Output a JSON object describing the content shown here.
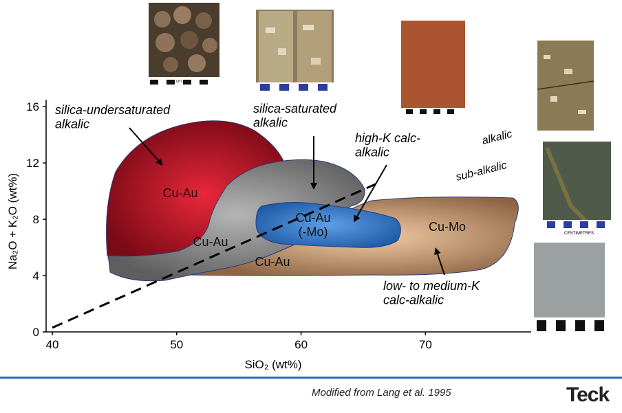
{
  "chart_data": {
    "type": "scatter",
    "xlabel": "SiO₂ (wt%)",
    "ylabel": "Na₂O + K₂O (wt%)",
    "x_ticks": [
      40,
      50,
      60,
      70
    ],
    "y_ticks": [
      0,
      4,
      8,
      12,
      16
    ],
    "xlim": [
      39.5,
      78.5
    ],
    "ylim": [
      0,
      16.5
    ],
    "divider": {
      "points": [
        [
          40,
          0.3
        ],
        [
          66,
          10.5
        ]
      ],
      "label_above": "alkalic",
      "label_below": "sub-alkalic"
    },
    "fields": [
      {
        "name": "silica-undersaturated alkalic",
        "deposit": "Cu-Au",
        "color": "#9c1020"
      },
      {
        "name": "silica-saturated alkalic",
        "deposit": "Cu-Au",
        "color": "#808080"
      },
      {
        "name": "high-K calc-alkalic",
        "deposit": "Cu-Au\n(-Mo)",
        "color": "#3b78c2"
      },
      {
        "name": "low- to medium-K calc-alkalic",
        "deposit": "Cu-Mo",
        "color": "#c89a72"
      }
    ],
    "extra_labels": [
      "Cu-Au",
      "Cu-Au"
    ],
    "annotations": [
      "silica-undersaturated\nalkalic",
      "silica-saturated\nalkalic",
      "high-K calc-\nalkalic",
      "low- to medium-K\ncalc-alkalic"
    ]
  },
  "photos": [
    {
      "name": "orbicular-rock-photo",
      "scale_label": "cm"
    },
    {
      "name": "drill-core-photo"
    },
    {
      "name": "red-altered-rock-photo"
    },
    {
      "name": "porphyry-photo-1"
    },
    {
      "name": "green-vein-photo",
      "scale_label": "CENTIMETRES"
    },
    {
      "name": "grey-porphyry-photo"
    }
  ],
  "footer": {
    "credit": "Modified from Lang et al. 1995",
    "logo": "Teck"
  }
}
